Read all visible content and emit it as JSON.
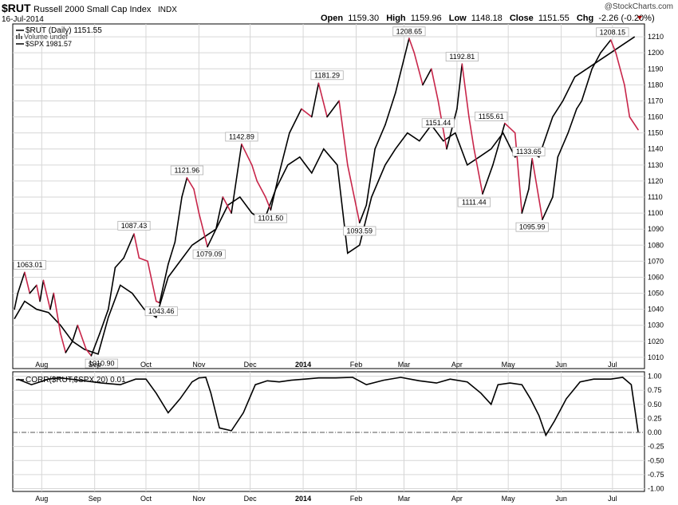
{
  "header": {
    "symbol": "$RUT",
    "name": "Russell 2000 Small Cap Index",
    "exchange": "INDX",
    "date": "16-Jul-2014",
    "watermark": "@StockCharts.com",
    "open_label": "Open",
    "open": "1159.30",
    "high_label": "High",
    "high": "1159.96",
    "low_label": "Low",
    "low": "1148.18",
    "close_label": "Close",
    "close": "1151.55",
    "chg_label": "Chg",
    "chg": "-2.26 (-0.20%)"
  },
  "legend": {
    "rut": "$RUT (Daily) 1151.55",
    "volume": "Volume undef",
    "spx": "$SPX 1981.57"
  },
  "corr_legend": "CORR($RUT,$SPX,20) 0.01",
  "colors": {
    "rut_up": "#000000",
    "rut_down": "#c8264a",
    "spx": "#000000",
    "grid": "#d6d6d6",
    "accent": "#990000"
  },
  "chart_data": [
    {
      "type": "line",
      "x_ticks": [
        "Aug",
        "Sep",
        "Oct",
        "Nov",
        "Dec",
        "2014",
        "Feb",
        "Mar",
        "Apr",
        "May",
        "Jun",
        "Jul"
      ],
      "y_ticks": [
        1010,
        1020,
        1030,
        1040,
        1050,
        1060,
        1070,
        1080,
        1090,
        1100,
        1110,
        1120,
        1130,
        1140,
        1150,
        1160,
        1170,
        1180,
        1190,
        1200,
        1210
      ],
      "ylim": [
        1003,
        1218
      ],
      "grid": true,
      "legend_position": "top-left",
      "series": [
        {
          "name": "$RUT (Daily) 1151.55",
          "x": [
            "2013-07-16",
            "2013-07-18",
            "2013-07-22",
            "2013-07-25",
            "2013-07-29",
            "2013-07-31",
            "2013-08-02",
            "2013-08-06",
            "2013-08-08",
            "2013-08-12",
            "2013-08-15",
            "2013-08-19",
            "2013-08-22",
            "2013-08-27",
            "2013-08-30",
            "2013-09-04",
            "2013-09-09",
            "2013-09-13",
            "2013-09-18",
            "2013-09-24",
            "2013-09-27",
            "2013-10-02",
            "2013-10-07",
            "2013-10-09",
            "2013-10-14",
            "2013-10-18",
            "2013-10-22",
            "2013-10-25",
            "2013-10-29",
            "2013-11-01",
            "2013-11-06",
            "2013-11-11",
            "2013-11-15",
            "2013-11-20",
            "2013-11-26",
            "2013-12-02",
            "2013-12-05",
            "2013-12-10",
            "2013-12-13",
            "2013-12-18",
            "2013-12-24",
            "2013-12-31",
            "2014-01-06",
            "2014-01-10",
            "2014-01-15",
            "2014-01-22",
            "2014-01-27",
            "2014-02-03",
            "2014-02-07",
            "2014-02-12",
            "2014-02-18",
            "2014-02-24",
            "2014-03-04",
            "2014-03-07",
            "2014-03-12",
            "2014-03-17",
            "2014-03-21",
            "2014-03-26",
            "2014-04-01",
            "2014-04-04",
            "2014-04-08",
            "2014-04-11",
            "2014-04-16",
            "2014-04-22",
            "2014-04-29",
            "2014-05-05",
            "2014-05-09",
            "2014-05-13",
            "2014-05-15",
            "2014-05-21",
            "2014-05-27",
            "2014-05-30",
            "2014-06-05",
            "2014-06-10",
            "2014-06-13",
            "2014-06-19",
            "2014-06-24",
            "2014-06-30",
            "2014-07-03",
            "2014-07-08",
            "2014-07-11",
            "2014-07-16"
          ],
          "values": [
            1040,
            1050,
            1063,
            1050,
            1055,
            1045,
            1058,
            1040,
            1050,
            1025,
            1013,
            1020,
            1030,
            1015,
            1011,
            1025,
            1040,
            1066,
            1072,
            1087,
            1072,
            1070,
            1045,
            1044,
            1068,
            1082,
            1110,
            1122,
            1115,
            1100,
            1079,
            1090,
            1110,
            1100,
            1143,
            1130,
            1120,
            1110,
            1102,
            1125,
            1150,
            1165,
            1160,
            1181,
            1160,
            1170,
            1130,
            1094,
            1105,
            1140,
            1155,
            1175,
            1209,
            1200,
            1180,
            1190,
            1170,
            1140,
            1165,
            1193,
            1160,
            1140,
            1112,
            1130,
            1156,
            1150,
            1100,
            1115,
            1134,
            1096,
            1110,
            1135,
            1150,
            1165,
            1170,
            1190,
            1200,
            1208,
            1200,
            1180,
            1160,
            1152
          ]
        },
        {
          "name": "$SPX 1981.57",
          "x": [
            "2013-07-16",
            "2013-07-22",
            "2013-07-29",
            "2013-08-05",
            "2013-08-12",
            "2013-08-19",
            "2013-08-26",
            "2013-09-03",
            "2013-09-09",
            "2013-09-16",
            "2013-09-23",
            "2013-09-30",
            "2013-10-07",
            "2013-10-14",
            "2013-10-21",
            "2013-10-28",
            "2013-11-04",
            "2013-11-11",
            "2013-11-18",
            "2013-11-25",
            "2013-12-02",
            "2013-12-09",
            "2013-12-16",
            "2013-12-23",
            "2013-12-30",
            "2014-01-06",
            "2014-01-13",
            "2014-01-21",
            "2014-01-27",
            "2014-02-03",
            "2014-02-10",
            "2014-02-18",
            "2014-02-24",
            "2014-03-03",
            "2014-03-10",
            "2014-03-17",
            "2014-03-24",
            "2014-03-31",
            "2014-04-07",
            "2014-04-14",
            "2014-04-21",
            "2014-04-28",
            "2014-05-05",
            "2014-05-12",
            "2014-05-19",
            "2014-05-27",
            "2014-06-02",
            "2014-06-09",
            "2014-06-16",
            "2014-06-23",
            "2014-06-30",
            "2014-07-07",
            "2014-07-14"
          ],
          "values": [
            1034,
            1045,
            1040,
            1038,
            1030,
            1020,
            1015,
            1012,
            1035,
            1055,
            1050,
            1040,
            1035,
            1060,
            1070,
            1080,
            1085,
            1090,
            1105,
            1110,
            1100,
            1095,
            1115,
            1130,
            1135,
            1125,
            1140,
            1130,
            1075,
            1080,
            1110,
            1130,
            1140,
            1150,
            1145,
            1155,
            1145,
            1150,
            1130,
            1135,
            1140,
            1150,
            1135,
            1140,
            1135,
            1160,
            1170,
            1185,
            1190,
            1195,
            1200,
            1205,
            1210
          ]
        }
      ],
      "annotations": [
        {
          "x": "2013-07-25",
          "y": 1063.01,
          "label": "1063.01"
        },
        {
          "x": "2013-09-05",
          "y": 1010.9,
          "label": "1010.90"
        },
        {
          "x": "2013-09-24",
          "y": 1087.43,
          "label": "1087.43"
        },
        {
          "x": "2013-10-10",
          "y": 1043.46,
          "label": "1043.46"
        },
        {
          "x": "2013-10-25",
          "y": 1121.96,
          "label": "1121.96"
        },
        {
          "x": "2013-11-07",
          "y": 1079.09,
          "label": "1079.09"
        },
        {
          "x": "2013-11-26",
          "y": 1142.89,
          "label": "1142.89"
        },
        {
          "x": "2013-12-13",
          "y": 1101.5,
          "label": "1101.50"
        },
        {
          "x": "2014-01-15",
          "y": 1181.29,
          "label": "1181.29"
        },
        {
          "x": "2014-02-03",
          "y": 1093.59,
          "label": "1093.59"
        },
        {
          "x": "2014-03-04",
          "y": 1208.65,
          "label": "1208.65"
        },
        {
          "x": "2014-03-21",
          "y": 1151.44,
          "label": "1151.44"
        },
        {
          "x": "2014-04-04",
          "y": 1192.81,
          "label": "1192.81"
        },
        {
          "x": "2014-04-11",
          "y": 1111.44,
          "label": "1111.44"
        },
        {
          "x": "2014-04-21",
          "y": 1155.61,
          "label": "1155.61"
        },
        {
          "x": "2014-05-15",
          "y": 1095.99,
          "label": "1095.99"
        },
        {
          "x": "2014-05-13",
          "y": 1133.65,
          "label": "1133.65"
        },
        {
          "x": "2014-07-01",
          "y": 1208.15,
          "label": "1208.15"
        }
      ]
    },
    {
      "type": "line",
      "x_ticks": [
        "Aug",
        "Sep",
        "Oct",
        "Nov",
        "Dec",
        "2014",
        "Feb",
        "Mar",
        "Apr",
        "May",
        "Jun",
        "Jul"
      ],
      "y_ticks": [
        -1.0,
        -0.75,
        -0.5,
        -0.25,
        0.0,
        0.25,
        0.5,
        0.75,
        1.0
      ],
      "ylim": [
        -1.05,
        1.08
      ],
      "zero_line": 0.0,
      "series": [
        {
          "name": "CORR($RUT,$SPX,20) 0.01",
          "x": [
            "2013-07-18",
            "2013-07-26",
            "2013-08-05",
            "2013-08-12",
            "2013-08-26",
            "2013-09-05",
            "2013-09-16",
            "2013-09-25",
            "2013-10-01",
            "2013-10-07",
            "2013-10-14",
            "2013-10-21",
            "2013-10-28",
            "2013-11-01",
            "2013-11-05",
            "2013-11-08",
            "2013-11-13",
            "2013-11-20",
            "2013-11-27",
            "2013-12-04",
            "2013-12-11",
            "2013-12-18",
            "2013-12-25",
            "2014-01-02",
            "2014-01-10",
            "2014-01-20",
            "2014-01-30",
            "2014-02-07",
            "2014-02-17",
            "2014-02-27",
            "2014-03-10",
            "2014-03-20",
            "2014-03-28",
            "2014-04-07",
            "2014-04-15",
            "2014-04-21",
            "2014-04-25",
            "2014-05-02",
            "2014-05-09",
            "2014-05-14",
            "2014-05-19",
            "2014-05-23",
            "2014-05-28",
            "2014-06-04",
            "2014-06-12",
            "2014-06-20",
            "2014-06-30",
            "2014-07-07",
            "2014-07-12",
            "2014-07-16"
          ],
          "values": [
            0.95,
            0.85,
            0.95,
            0.97,
            0.92,
            0.88,
            0.85,
            0.95,
            0.95,
            0.7,
            0.35,
            0.6,
            0.9,
            0.97,
            0.98,
            0.7,
            0.08,
            0.03,
            0.35,
            0.85,
            0.92,
            0.9,
            0.93,
            0.95,
            0.97,
            0.97,
            0.98,
            0.85,
            0.93,
            0.98,
            0.92,
            0.88,
            0.95,
            0.9,
            0.7,
            0.5,
            0.85,
            0.88,
            0.85,
            0.6,
            0.3,
            -0.05,
            0.2,
            0.6,
            0.9,
            0.95,
            0.95,
            0.98,
            0.85,
            0.01
          ]
        }
      ]
    }
  ]
}
